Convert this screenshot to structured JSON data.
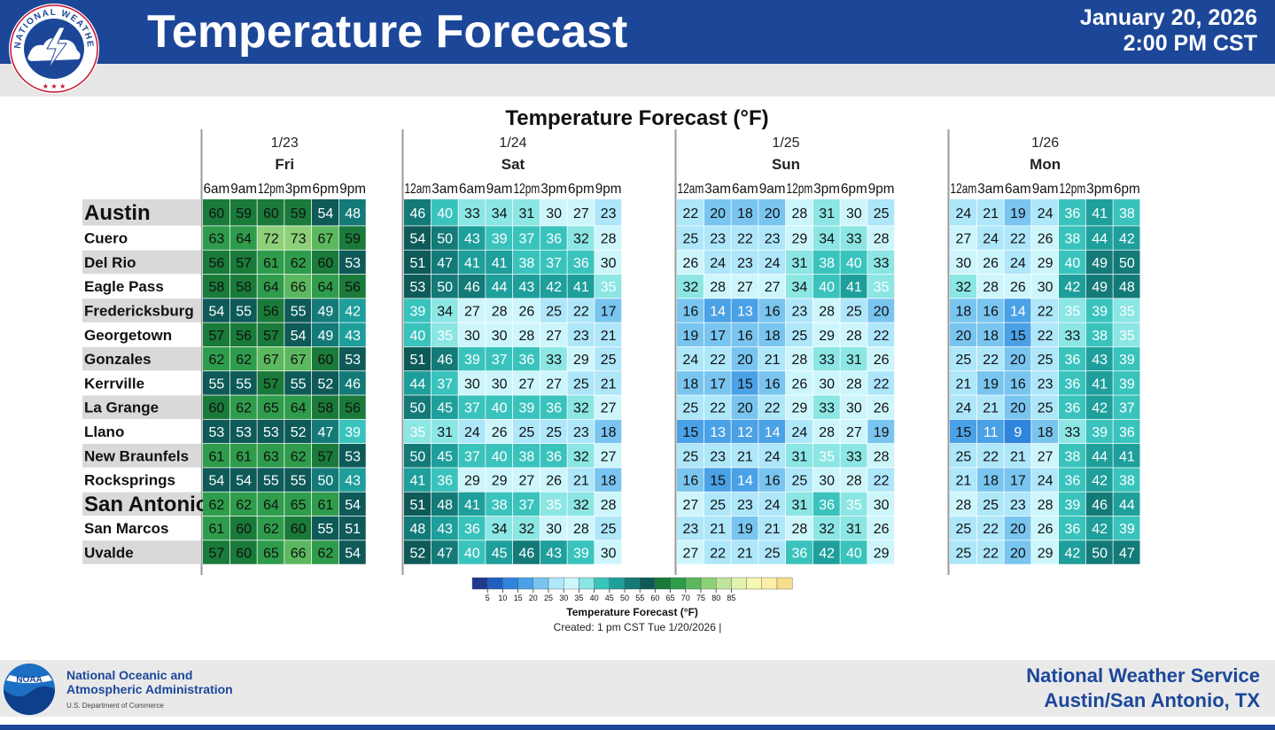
{
  "header": {
    "title": "Temperature Forecast",
    "date": "January 20, 2026",
    "time": "2:00 PM CST"
  },
  "logo": {
    "nws_ring_text": "NATIONAL WEATHER SERVICE",
    "noaa_text": "NOAA"
  },
  "footer": {
    "noaa_line1": "National Oceanic and",
    "noaa_line2": "Atmospheric Administration",
    "noaa_dept": "U.S. Department of Commerce",
    "nws_line1": "National Weather Service",
    "nws_line2": "Austin/San Antonio, TX"
  },
  "created": "Created: 1 pm CST Tue 1/20/2026  |",
  "colors": {
    "header_blue": "#1c4799",
    "row_shade": "#d9d9d9"
  },
  "chart_data": {
    "type": "heatmap",
    "title": "Temperature Forecast (°F)",
    "days": [
      {
        "date": "1/23",
        "day": "Fri",
        "hours": [
          "6am",
          "9am",
          "12pm",
          "3pm",
          "6pm",
          "9pm"
        ]
      },
      {
        "date": "1/24",
        "day": "Sat",
        "hours": [
          "12am",
          "3am",
          "6am",
          "9am",
          "12pm",
          "3pm",
          "6pm",
          "9pm"
        ]
      },
      {
        "date": "1/25",
        "day": "Sun",
        "hours": [
          "12am",
          "3am",
          "6am",
          "9am",
          "12pm",
          "3pm",
          "6pm",
          "9pm"
        ]
      },
      {
        "date": "1/26",
        "day": "Mon",
        "hours": [
          "12am",
          "3am",
          "6am",
          "9am",
          "12pm",
          "3pm",
          "6pm"
        ]
      }
    ],
    "rows": [
      {
        "name": "Austin",
        "major": true,
        "values": [
          60,
          59,
          60,
          59,
          54,
          48,
          46,
          40,
          33,
          34,
          31,
          30,
          27,
          23,
          22,
          20,
          18,
          20,
          28,
          31,
          30,
          25,
          24,
          21,
          19,
          24,
          36,
          41,
          38
        ]
      },
      {
        "name": "Cuero",
        "values": [
          63,
          64,
          72,
          73,
          67,
          59,
          54,
          50,
          43,
          39,
          37,
          36,
          32,
          28,
          25,
          23,
          22,
          23,
          29,
          34,
          33,
          28,
          27,
          24,
          22,
          26,
          38,
          44,
          42
        ]
      },
      {
        "name": "Del Rio",
        "values": [
          56,
          57,
          61,
          62,
          60,
          53,
          51,
          47,
          41,
          41,
          38,
          37,
          36,
          30,
          26,
          24,
          23,
          24,
          31,
          38,
          40,
          33,
          30,
          26,
          24,
          29,
          40,
          49,
          50
        ]
      },
      {
        "name": "Eagle Pass",
        "values": [
          58,
          58,
          64,
          66,
          64,
          56,
          53,
          50,
          46,
          44,
          43,
          42,
          41,
          35,
          32,
          28,
          27,
          27,
          34,
          40,
          41,
          35,
          32,
          28,
          26,
          30,
          42,
          49,
          48
        ]
      },
      {
        "name": "Fredericksburg",
        "values": [
          54,
          55,
          56,
          55,
          49,
          42,
          39,
          34,
          27,
          28,
          26,
          25,
          22,
          17,
          16,
          14,
          13,
          16,
          23,
          28,
          25,
          20,
          18,
          16,
          14,
          22,
          35,
          39,
          35
        ]
      },
      {
        "name": "Georgetown",
        "values": [
          57,
          56,
          57,
          54,
          49,
          43,
          40,
          35,
          30,
          30,
          28,
          27,
          23,
          21,
          19,
          17,
          16,
          18,
          25,
          29,
          28,
          22,
          20,
          18,
          15,
          22,
          33,
          38,
          35
        ]
      },
      {
        "name": "Gonzales",
        "values": [
          62,
          62,
          67,
          67,
          60,
          53,
          51,
          46,
          39,
          37,
          36,
          33,
          29,
          25,
          24,
          22,
          20,
          21,
          28,
          33,
          31,
          26,
          25,
          22,
          20,
          25,
          36,
          43,
          39
        ]
      },
      {
        "name": "Kerrville",
        "values": [
          55,
          55,
          57,
          55,
          52,
          46,
          44,
          37,
          30,
          30,
          27,
          27,
          25,
          21,
          18,
          17,
          15,
          16,
          26,
          30,
          28,
          22,
          21,
          19,
          16,
          23,
          36,
          41,
          39
        ]
      },
      {
        "name": "La Grange",
        "values": [
          60,
          62,
          65,
          64,
          58,
          56,
          50,
          45,
          37,
          40,
          39,
          36,
          32,
          27,
          25,
          22,
          20,
          22,
          29,
          33,
          30,
          26,
          24,
          21,
          20,
          25,
          36,
          42,
          37
        ]
      },
      {
        "name": "Llano",
        "values": [
          53,
          53,
          53,
          52,
          47,
          39,
          35,
          31,
          24,
          26,
          25,
          25,
          23,
          18,
          15,
          13,
          12,
          14,
          24,
          28,
          27,
          19,
          15,
          11,
          9,
          18,
          33,
          39,
          36
        ]
      },
      {
        "name": "New Braunfels",
        "values": [
          61,
          61,
          63,
          62,
          57,
          53,
          50,
          45,
          37,
          40,
          38,
          36,
          32,
          27,
          25,
          23,
          21,
          24,
          31,
          35,
          33,
          28,
          25,
          22,
          21,
          27,
          38,
          44,
          41
        ]
      },
      {
        "name": "Rocksprings",
        "values": [
          54,
          54,
          55,
          55,
          50,
          43,
          41,
          36,
          29,
          29,
          27,
          26,
          21,
          18,
          16,
          15,
          14,
          16,
          25,
          30,
          28,
          22,
          21,
          18,
          17,
          24,
          36,
          42,
          38
        ]
      },
      {
        "name": "San Antonio",
        "major": true,
        "values": [
          62,
          62,
          64,
          65,
          61,
          54,
          51,
          48,
          41,
          38,
          37,
          35,
          32,
          28,
          27,
          25,
          23,
          24,
          31,
          36,
          35,
          30,
          28,
          25,
          23,
          28,
          39,
          46,
          44
        ]
      },
      {
        "name": "San Marcos",
        "values": [
          61,
          60,
          62,
          60,
          55,
          51,
          48,
          43,
          36,
          34,
          32,
          30,
          28,
          25,
          23,
          21,
          19,
          21,
          28,
          32,
          31,
          26,
          25,
          22,
          20,
          26,
          36,
          42,
          39
        ]
      },
      {
        "name": "Uvalde",
        "values": [
          57,
          60,
          65,
          66,
          62,
          54,
          52,
          47,
          40,
          45,
          46,
          43,
          39,
          30,
          27,
          22,
          21,
          25,
          36,
          42,
          40,
          29,
          25,
          22,
          20,
          29,
          42,
          50,
          47
        ]
      }
    ],
    "colorbar": {
      "title": "Temperature Forecast (°F)",
      "ticks": [
        5,
        10,
        15,
        20,
        25,
        30,
        35,
        40,
        45,
        50,
        55,
        60,
        65,
        70,
        75,
        80,
        85
      ],
      "bins": [
        "#1e3a8f",
        "#1f5fc0",
        "#2f84db",
        "#4aa1e6",
        "#79c5f0",
        "#aee6fa",
        "#cdf6fc",
        "#8be6e4",
        "#3ac3bd",
        "#1e9f9b",
        "#137a78",
        "#0e5a58",
        "#1a7a3a",
        "#2f9c4c",
        "#5bb85e",
        "#8dd078",
        "#bfe49b",
        "#e2f3b0",
        "#f6f7b0",
        "#fdf0a6",
        "#f7dd8c"
      ]
    }
  }
}
